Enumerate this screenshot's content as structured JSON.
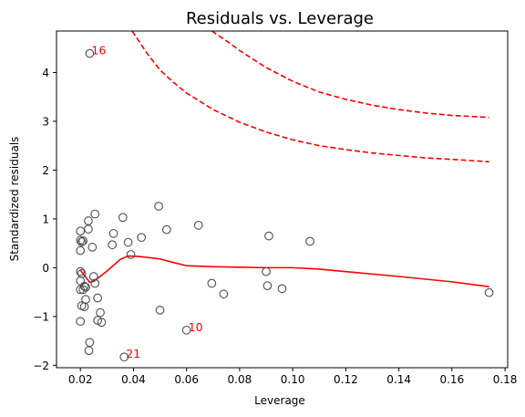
{
  "chart_data": {
    "type": "scatter",
    "title": "Residuals vs. Leverage",
    "xlabel": "Leverage",
    "ylabel": "Standardized residuals",
    "xlim": [
      0.011,
      0.181
    ],
    "ylim": [
      -2.05,
      4.85
    ],
    "x_ticks": [
      {
        "value": 0.02,
        "label": "0.02"
      },
      {
        "value": 0.04,
        "label": "0.04"
      },
      {
        "value": 0.06,
        "label": "0.06"
      },
      {
        "value": 0.08,
        "label": "0.08"
      },
      {
        "value": 0.1,
        "label": "0.10"
      },
      {
        "value": 0.12,
        "label": "0.12"
      },
      {
        "value": 0.14,
        "label": "0.14"
      },
      {
        "value": 0.16,
        "label": "0.16"
      },
      {
        "value": 0.18,
        "label": "0.18"
      }
    ],
    "y_ticks": [
      {
        "value": -2,
        "label": "−2"
      },
      {
        "value": -1,
        "label": "−1"
      },
      {
        "value": 0,
        "label": "0"
      },
      {
        "value": 1,
        "label": "1"
      },
      {
        "value": 2,
        "label": "2"
      },
      {
        "value": 3,
        "label": "3"
      },
      {
        "value": 4,
        "label": "4"
      }
    ],
    "grid": false,
    "colors": {
      "points": "#4d4d4d",
      "smooth_line": "#ff0000",
      "cooks_lines": "#ff0000",
      "annotations": "#ff0000"
    },
    "points": [
      [
        0.0235,
        4.39
      ],
      [
        0.02,
        0.75
      ],
      [
        0.02,
        0.56
      ],
      [
        0.0205,
        0.53
      ],
      [
        0.021,
        0.55
      ],
      [
        0.02,
        0.35
      ],
      [
        0.02,
        -0.08
      ],
      [
        0.0205,
        -0.12
      ],
      [
        0.02,
        -0.27
      ],
      [
        0.021,
        -0.45
      ],
      [
        0.02,
        -0.45
      ],
      [
        0.0215,
        -0.38
      ],
      [
        0.022,
        -0.4
      ],
      [
        0.022,
        -0.65
      ],
      [
        0.0205,
        -0.78
      ],
      [
        0.0215,
        -0.8
      ],
      [
        0.02,
        -1.1
      ],
      [
        0.023,
        0.96
      ],
      [
        0.023,
        0.79
      ],
      [
        0.0245,
        0.42
      ],
      [
        0.0255,
        1.1
      ],
      [
        0.025,
        -0.18
      ],
      [
        0.0255,
        -0.32
      ],
      [
        0.0265,
        -0.62
      ],
      [
        0.0265,
        -1.08
      ],
      [
        0.0275,
        -0.92
      ],
      [
        0.028,
        -1.12
      ],
      [
        0.0235,
        -1.53
      ],
      [
        0.0232,
        -1.7
      ],
      [
        0.0325,
        0.7
      ],
      [
        0.032,
        0.47
      ],
      [
        0.036,
        1.03
      ],
      [
        0.038,
        0.52
      ],
      [
        0.039,
        0.27
      ],
      [
        0.043,
        0.62
      ],
      [
        0.0365,
        -1.83
      ],
      [
        0.0495,
        1.26
      ],
      [
        0.0525,
        0.78
      ],
      [
        0.05,
        -0.87
      ],
      [
        0.06,
        -1.28
      ],
      [
        0.0645,
        0.87
      ],
      [
        0.0695,
        -0.32
      ],
      [
        0.074,
        -0.54
      ],
      [
        0.09,
        -0.08
      ],
      [
        0.0905,
        -0.37
      ],
      [
        0.091,
        0.65
      ],
      [
        0.096,
        -0.43
      ],
      [
        0.1065,
        0.54
      ],
      [
        0.174,
        -0.51
      ]
    ],
    "smooth_line": [
      [
        0.02,
        -0.05
      ],
      [
        0.0235,
        -0.3
      ],
      [
        0.025,
        -0.28
      ],
      [
        0.03,
        -0.07
      ],
      [
        0.035,
        0.17
      ],
      [
        0.038,
        0.24
      ],
      [
        0.042,
        0.23
      ],
      [
        0.05,
        0.18
      ],
      [
        0.054,
        0.12
      ],
      [
        0.06,
        0.04
      ],
      [
        0.07,
        0.02
      ],
      [
        0.08,
        0.01
      ],
      [
        0.09,
        0.0
      ],
      [
        0.1,
        0.0
      ],
      [
        0.11,
        -0.03
      ],
      [
        0.12,
        -0.08
      ],
      [
        0.14,
        -0.18
      ],
      [
        0.16,
        -0.29
      ],
      [
        0.174,
        -0.39
      ]
    ],
    "cooks_lines": [
      {
        "points": [
          [
            0.0395,
            4.85
          ],
          [
            0.045,
            4.4
          ],
          [
            0.05,
            4.05
          ],
          [
            0.055,
            3.8
          ],
          [
            0.06,
            3.58
          ],
          [
            0.07,
            3.24
          ],
          [
            0.08,
            2.98
          ],
          [
            0.09,
            2.78
          ],
          [
            0.1,
            2.62
          ],
          [
            0.11,
            2.5
          ],
          [
            0.12,
            2.42
          ],
          [
            0.13,
            2.35
          ],
          [
            0.14,
            2.3
          ],
          [
            0.15,
            2.25
          ],
          [
            0.16,
            2.22
          ],
          [
            0.174,
            2.17
          ]
        ]
      },
      {
        "points": [
          [
            0.0695,
            4.85
          ],
          [
            0.075,
            4.65
          ],
          [
            0.08,
            4.45
          ],
          [
            0.09,
            4.1
          ],
          [
            0.1,
            3.82
          ],
          [
            0.11,
            3.6
          ],
          [
            0.12,
            3.45
          ],
          [
            0.13,
            3.33
          ],
          [
            0.14,
            3.24
          ],
          [
            0.15,
            3.17
          ],
          [
            0.16,
            3.12
          ],
          [
            0.174,
            3.08
          ]
        ]
      }
    ],
    "annotations": [
      {
        "text": "16",
        "x": 0.0235,
        "y": 4.39
      },
      {
        "text": "10",
        "x": 0.06,
        "y": -1.28
      },
      {
        "text": "21",
        "x": 0.0365,
        "y": -1.83
      }
    ]
  }
}
